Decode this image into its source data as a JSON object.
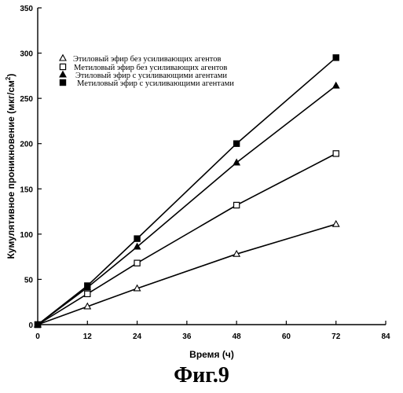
{
  "chart_data": {
    "type": "line",
    "xlabel": "Время (ч)",
    "ylabel": "Кумулятивное проникновение (мкг/см",
    "ylabel_sup": "2",
    "ylabel_end": ")",
    "xlim": [
      0,
      84
    ],
    "ylim": [
      0,
      350
    ],
    "xticks": [
      0,
      12,
      24,
      36,
      48,
      60,
      72,
      84
    ],
    "yticks": [
      0,
      50,
      100,
      150,
      200,
      250,
      300,
      350
    ],
    "grid": false,
    "legend_placement": "top-left",
    "series": [
      {
        "name": "Этиловый эфир без усиливающих агентов",
        "marker": "triangle-open",
        "x": [
          0,
          12,
          24,
          48,
          72
        ],
        "y": [
          0,
          20,
          40,
          78,
          111
        ]
      },
      {
        "name": "Метиловый эфир без усиливающих агентов",
        "marker": "square-open",
        "x": [
          0,
          12,
          24,
          48,
          72
        ],
        "y": [
          0,
          34,
          68,
          132,
          189
        ]
      },
      {
        "name": "Этиловый эфир с усиливающими агентами",
        "marker": "triangle-filled",
        "x": [
          0,
          12,
          24,
          48,
          72
        ],
        "y": [
          0,
          41,
          86,
          179,
          264
        ]
      },
      {
        "name": "Метиловый эфир с усиливающими агентами",
        "marker": "square-filled",
        "x": [
          0,
          12,
          24,
          48,
          72
        ],
        "y": [
          0,
          43,
          95,
          200,
          295
        ]
      }
    ]
  },
  "caption": "Фиг.9"
}
